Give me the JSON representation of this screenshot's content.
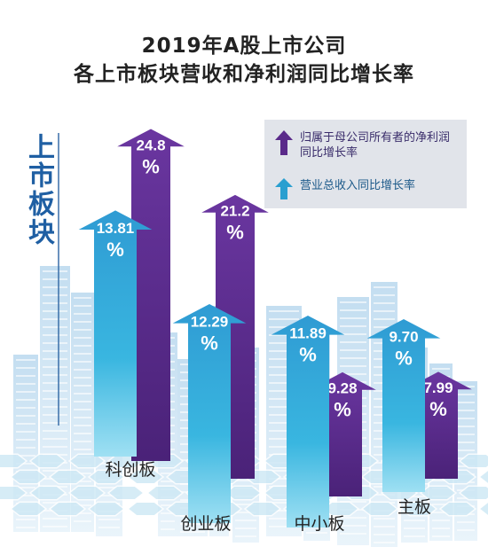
{
  "title_line1": "2019年A股上市公司",
  "title_line2": "各上市板块营收和净利润同比增长率",
  "side_label": "上市板块",
  "legend": {
    "net_profit": "归属于母公司所有者的净利润同比增长率",
    "revenue": "营业总收入同比增长率"
  },
  "colors": {
    "net_profit": "#5a2a8a",
    "revenue": "#2a9fd0",
    "background_buildings": "#cfe3f2",
    "ground_hex": "#cde8f5"
  },
  "unit": "%",
  "chart_data": {
    "type": "bar",
    "categories": [
      "科创板",
      "创业板",
      "中小板",
      "主板"
    ],
    "series": [
      {
        "name": "营业总收入同比增长率",
        "values": [
          13.81,
          12.29,
          11.89,
          9.7
        ]
      },
      {
        "name": "归属于母公司所有者的净利润同比增长率",
        "values": [
          24.8,
          21.2,
          9.28,
          7.99
        ]
      }
    ],
    "title": "2019年A股上市公司各上市板块营收和净利润同比增长率",
    "ylabel": "",
    "legend_position": "top-right",
    "grid": false
  }
}
